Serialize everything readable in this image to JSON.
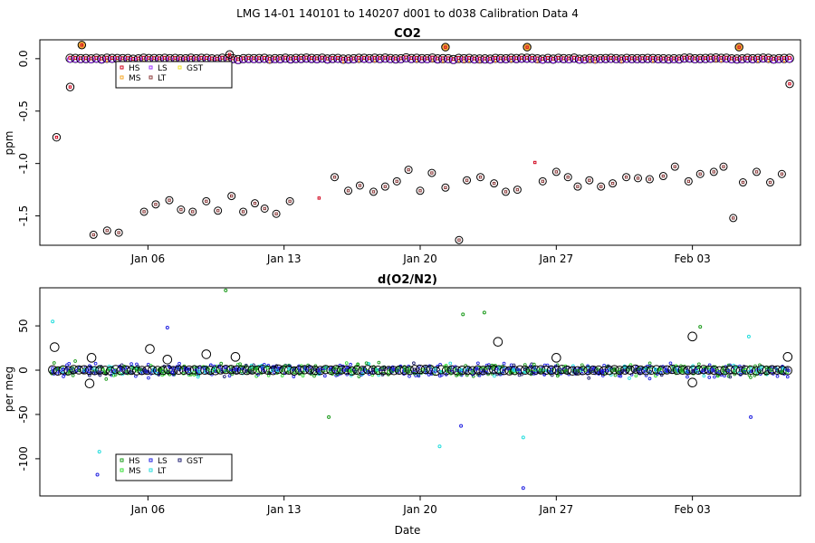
{
  "figure_title": "LMG   14-01    140101 to 140207    d001 to d038   Calibration Data 4",
  "colors": {
    "HS": "#d0021b",
    "MS": "#f5a623",
    "LS": "#9b30ff",
    "LT": "#8b3a3a",
    "GST": "#f0e020",
    "HS2": "#1a9a1a",
    "MS2": "#33dd33",
    "LS2": "#1f1fe0",
    "LT2": "#22dddd",
    "GST2": "#1f1f70",
    "circle": "#000000"
  },
  "chart_data": [
    {
      "id": "co2",
      "type": "scatter",
      "title": "CO2",
      "xlabel": "",
      "ylabel": "ppm",
      "x_range": [
        0,
        38
      ],
      "xticks": [
        {
          "label": "Jan 06",
          "value": 5
        },
        {
          "label": "Jan 13",
          "value": 12
        },
        {
          "label": "Jan 20",
          "value": 19
        },
        {
          "label": "Jan 27",
          "value": 26
        },
        {
          "label": "Feb 03",
          "value": 33
        }
      ],
      "ylim": [
        -1.78,
        0.18
      ],
      "yticks": [
        0.0,
        -0.5,
        -1.0,
        -1.5
      ],
      "ytick_labels": [
        "0.0",
        "-0.5",
        "-1.0",
        "-1.5"
      ],
      "legend": {
        "position": "top-left",
        "entries": [
          "HS",
          "MS",
          "LS",
          "LT",
          "GST"
        ]
      },
      "series_description": "Most standards cluster near 0 ppm across days 1-38; a lower group of points sits between -1.0 and -1.75 ppm.",
      "upper_band": {
        "x_start": 1.0,
        "x_end": 38.0,
        "y": 0.0
      },
      "lower_points": [
        [
          2.2,
          -1.68
        ],
        [
          2.9,
          -1.64
        ],
        [
          3.5,
          -1.66
        ],
        [
          4.8,
          -1.46
        ],
        [
          5.4,
          -1.39
        ],
        [
          6.1,
          -1.35
        ],
        [
          6.7,
          -1.44
        ],
        [
          7.3,
          -1.46
        ],
        [
          8.0,
          -1.36
        ],
        [
          8.6,
          -1.45
        ],
        [
          9.3,
          -1.31
        ],
        [
          9.9,
          -1.46
        ],
        [
          10.5,
          -1.38
        ],
        [
          11.0,
          -1.43
        ],
        [
          11.6,
          -1.48
        ],
        [
          12.3,
          -1.36
        ],
        [
          14.6,
          -1.13
        ],
        [
          15.3,
          -1.26
        ],
        [
          15.9,
          -1.21
        ],
        [
          16.6,
          -1.27
        ],
        [
          17.2,
          -1.22
        ],
        [
          17.8,
          -1.17
        ],
        [
          18.4,
          -1.06
        ],
        [
          19.0,
          -1.26
        ],
        [
          19.6,
          -1.09
        ],
        [
          20.3,
          -1.23
        ],
        [
          21.0,
          -1.73
        ],
        [
          21.4,
          -1.16
        ],
        [
          22.1,
          -1.13
        ],
        [
          22.8,
          -1.19
        ],
        [
          23.4,
          -1.27
        ],
        [
          24.0,
          -1.25
        ],
        [
          25.3,
          -1.17
        ],
        [
          26.0,
          -1.08
        ],
        [
          26.6,
          -1.13
        ],
        [
          27.1,
          -1.22
        ],
        [
          27.7,
          -1.16
        ],
        [
          28.3,
          -1.22
        ],
        [
          28.9,
          -1.19
        ],
        [
          29.6,
          -1.13
        ],
        [
          30.2,
          -1.14
        ],
        [
          30.8,
          -1.15
        ],
        [
          31.5,
          -1.12
        ],
        [
          32.1,
          -1.03
        ],
        [
          32.8,
          -1.17
        ],
        [
          33.4,
          -1.1
        ],
        [
          34.1,
          -1.08
        ],
        [
          34.6,
          -1.03
        ],
        [
          35.1,
          -1.52
        ],
        [
          35.6,
          -1.18
        ],
        [
          36.3,
          -1.08
        ],
        [
          37.0,
          -1.18
        ],
        [
          37.6,
          -1.1
        ]
      ],
      "outliers": [
        [
          0.3,
          -0.75
        ],
        [
          1.0,
          -0.27
        ],
        [
          1.6,
          0.13
        ],
        [
          9.2,
          0.04
        ],
        [
          20.3,
          0.11
        ],
        [
          24.5,
          0.11
        ],
        [
          35.4,
          0.11
        ],
        [
          38.0,
          -0.24
        ],
        [
          13.8,
          -1.33
        ],
        [
          24.9,
          -0.99
        ]
      ]
    },
    {
      "id": "o2n2",
      "type": "scatter",
      "title": "d(O2/N2)",
      "xlabel": "Date",
      "ylabel": "per meg",
      "x_range": [
        0,
        38
      ],
      "xticks": [
        {
          "label": "Jan 06",
          "value": 5
        },
        {
          "label": "Jan 13",
          "value": 12
        },
        {
          "label": "Jan 20",
          "value": 19
        },
        {
          "label": "Jan 27",
          "value": 26
        },
        {
          "label": "Feb 03",
          "value": 33
        }
      ],
      "ylim": [
        -142,
        93
      ],
      "yticks": [
        50,
        0,
        -50,
        -100
      ],
      "ytick_labels": [
        "50",
        "0",
        "-50",
        "-100"
      ],
      "legend": {
        "position": "bottom-left",
        "entries": [
          "HS",
          "MS",
          "LS",
          "LT",
          "GST"
        ]
      },
      "series_description": "Values scatter around 0 per meg, mostly within -30 to +30, with outliers up to about +90 and down to about -135.",
      "typical_spread": [
        -30,
        30
      ],
      "outliers": [
        [
          9.0,
          90
        ],
        [
          6.0,
          48
        ],
        [
          0.1,
          55
        ],
        [
          21.2,
          63
        ],
        [
          21.1,
          -63
        ],
        [
          20.0,
          -86
        ],
        [
          22.3,
          65
        ],
        [
          24.3,
          -133
        ],
        [
          24.3,
          -76
        ],
        [
          33.4,
          49
        ],
        [
          36.0,
          -53
        ],
        [
          2.5,
          -92
        ],
        [
          14.3,
          -53
        ],
        [
          2.4,
          -118
        ],
        [
          35.9,
          38
        ]
      ],
      "circles": [
        [
          0.2,
          26
        ],
        [
          2.1,
          14
        ],
        [
          5.1,
          24
        ],
        [
          6.0,
          12
        ],
        [
          8.0,
          18
        ],
        [
          9.5,
          15
        ],
        [
          23.0,
          32
        ],
        [
          26.0,
          14
        ],
        [
          33.0,
          38
        ],
        [
          33.0,
          -14
        ],
        [
          37.9,
          15
        ],
        [
          2.0,
          -15
        ]
      ]
    }
  ]
}
